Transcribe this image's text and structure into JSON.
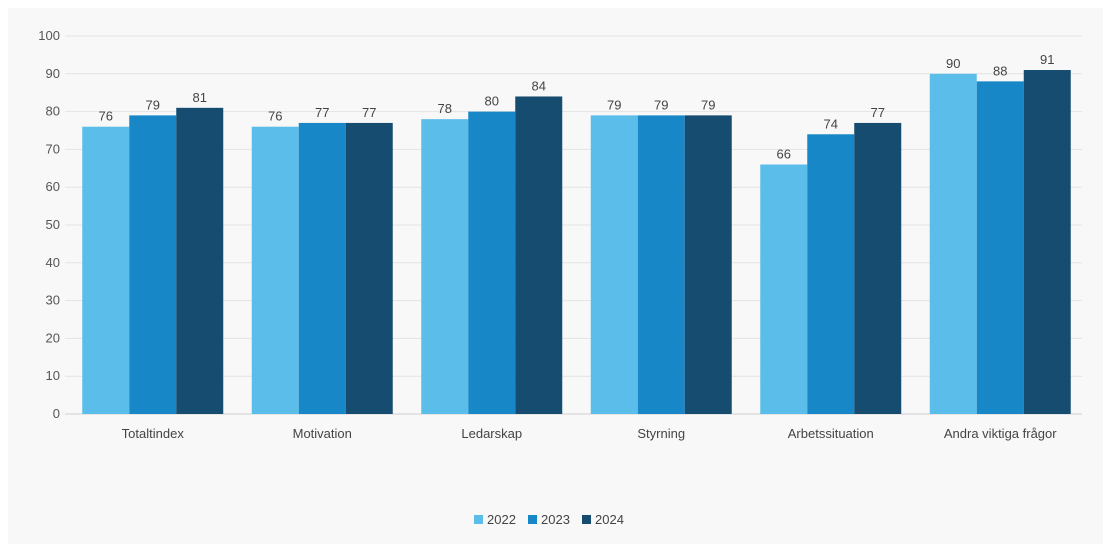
{
  "chart_data": {
    "type": "bar",
    "categories": [
      "Totaltindex",
      "Motivation",
      "Ledarskap",
      "Styrning",
      "Arbetssituation",
      "Andra viktiga frågor"
    ],
    "series": [
      {
        "name": "2022",
        "color": "#5bbde9",
        "values": [
          76,
          76,
          78,
          79,
          66,
          90
        ]
      },
      {
        "name": "2023",
        "color": "#1787c7",
        "values": [
          79,
          77,
          80,
          79,
          74,
          88
        ]
      },
      {
        "name": "2024",
        "color": "#154c6f",
        "values": [
          81,
          77,
          84,
          79,
          77,
          91
        ]
      }
    ],
    "ylim": [
      0,
      100
    ],
    "yticks": [
      0,
      10,
      20,
      30,
      40,
      50,
      60,
      70,
      80,
      90,
      100
    ],
    "grid": true,
    "legend_position": "bottom-center",
    "data_labels": true
  }
}
